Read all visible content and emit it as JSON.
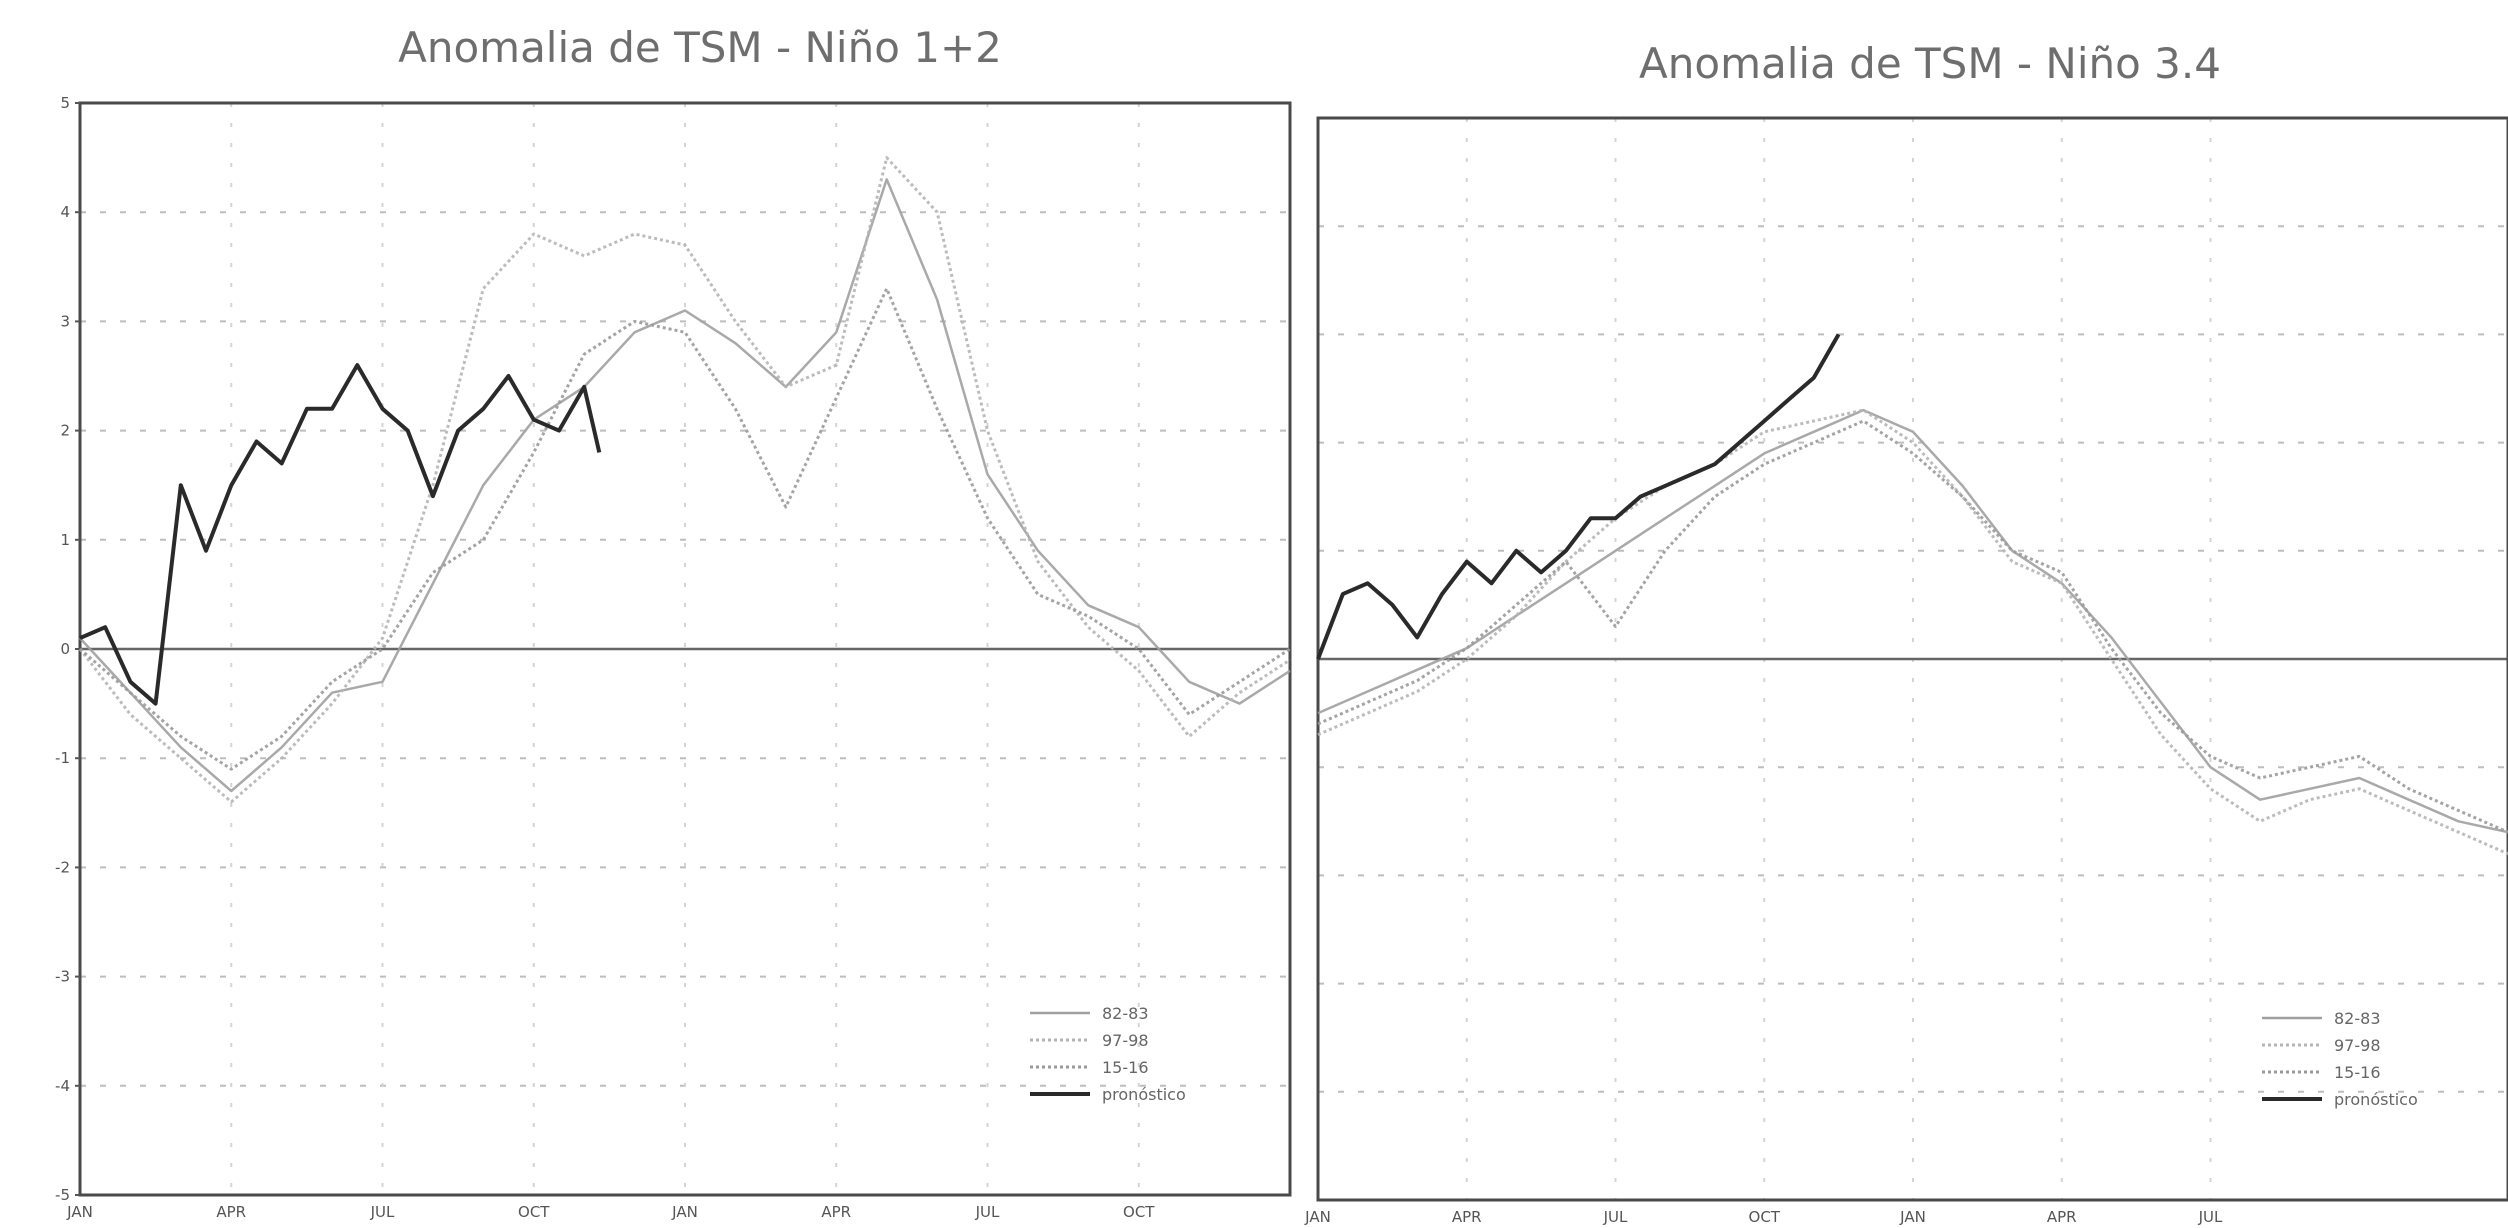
{
  "chart_data": [
    {
      "type": "line",
      "title": "Anomalia de TSM - Niño 1+2",
      "xlabel": "",
      "ylabel": "",
      "ylim": [
        -5,
        5
      ],
      "xlim": [
        0,
        24
      ],
      "x_tick_labels": [
        "JAN",
        "APR",
        "JUL",
        "OCT",
        "JAN",
        "APR",
        "JUL",
        "OCT"
      ],
      "x_tick_positions": [
        0,
        3,
        6,
        9,
        12,
        15,
        18,
        21
      ],
      "y_ticks": [
        -5,
        -4,
        -3,
        -2,
        -1,
        0,
        1,
        2,
        3,
        4,
        5
      ],
      "grid": true,
      "legend_position": "bottom-right",
      "series": [
        {
          "name": "82-83",
          "style": "solid-light",
          "color": "#a0a0a0",
          "x": [
            0,
            1,
            2,
            3,
            4,
            5,
            6,
            7,
            8,
            9,
            10,
            11,
            12,
            13,
            14,
            15,
            16,
            17,
            18,
            19,
            20,
            21,
            22,
            23,
            24
          ],
          "y": [
            0.1,
            -0.4,
            -0.9,
            -1.3,
            -0.9,
            -0.4,
            -0.3,
            0.6,
            1.5,
            2.1,
            2.4,
            2.9,
            3.1,
            2.8,
            2.4,
            2.9,
            4.3,
            3.2,
            1.6,
            0.9,
            0.4,
            0.2,
            -0.3,
            -0.5,
            -0.2
          ]
        },
        {
          "name": "97-98",
          "style": "dotted",
          "color": "#b5b5b5",
          "x": [
            0,
            1,
            2,
            3,
            4,
            5,
            6,
            7,
            8,
            9,
            10,
            11,
            12,
            13,
            14,
            15,
            16,
            17,
            18,
            19,
            20,
            21,
            22,
            23,
            24
          ],
          "y": [
            0.0,
            -0.6,
            -1.0,
            -1.4,
            -1.0,
            -0.5,
            0.1,
            1.5,
            3.3,
            3.8,
            3.6,
            3.8,
            3.7,
            3.0,
            2.4,
            2.6,
            4.5,
            4.0,
            2.0,
            0.8,
            0.2,
            -0.2,
            -0.8,
            -0.4,
            -0.1
          ]
        },
        {
          "name": "15-16",
          "style": "dotted",
          "color": "#9a9a9a",
          "x": [
            0,
            1,
            2,
            3,
            4,
            5,
            6,
            7,
            8,
            9,
            10,
            11,
            12,
            13,
            14,
            15,
            16,
            17,
            18,
            19,
            20,
            21,
            22,
            23,
            24
          ],
          "y": [
            0.0,
            -0.4,
            -0.8,
            -1.1,
            -0.8,
            -0.3,
            0.0,
            0.7,
            1.0,
            1.8,
            2.7,
            3.0,
            2.9,
            2.2,
            1.3,
            2.3,
            3.3,
            2.2,
            1.2,
            0.5,
            0.3,
            0.0,
            -0.6,
            -0.3,
            0.0
          ]
        },
        {
          "name": "pronóstico",
          "style": "solid-dark",
          "color": "#2a2a2a",
          "x": [
            0,
            0.5,
            1,
            1.5,
            2,
            2.5,
            3,
            3.5,
            4,
            4.5,
            5,
            5.5,
            6,
            6.5,
            7,
            7.5,
            8,
            8.5,
            9,
            9.5,
            10,
            10.3
          ],
          "y": [
            0.1,
            0.2,
            -0.3,
            -0.5,
            1.5,
            0.9,
            1.5,
            1.9,
            1.7,
            2.2,
            2.2,
            2.6,
            2.2,
            2.0,
            1.4,
            2.0,
            2.2,
            2.5,
            2.1,
            2.0,
            2.4,
            1.8
          ]
        }
      ],
      "legend": [
        "82-83",
        "97-98",
        "15-16",
        "pronóstico"
      ]
    },
    {
      "type": "line",
      "title": "Anomalia de TSM - Niño 3.4",
      "xlabel": "",
      "ylabel": "",
      "ylim": [
        -5,
        5
      ],
      "xlim": [
        0,
        24
      ],
      "x_tick_labels": [
        "JAN",
        "APR",
        "JUL",
        "OCT",
        "JAN",
        "APR",
        "JUL"
      ],
      "x_tick_positions": [
        0,
        3,
        6,
        9,
        12,
        15,
        18
      ],
      "grid": true,
      "legend_position": "bottom-right",
      "series": [
        {
          "name": "82-83",
          "style": "solid-light",
          "color": "#a0a0a0",
          "x": [
            0,
            1,
            2,
            3,
            4,
            5,
            6,
            7,
            8,
            9,
            10,
            11,
            12,
            13,
            14,
            15,
            16,
            17,
            18,
            19,
            20,
            21,
            22,
            23,
            24
          ],
          "y": [
            -0.5,
            -0.3,
            -0.1,
            0.1,
            0.4,
            0.7,
            1.0,
            1.3,
            1.6,
            1.9,
            2.1,
            2.3,
            2.1,
            1.6,
            1.0,
            0.7,
            0.2,
            -0.4,
            -1.0,
            -1.3,
            -1.2,
            -1.1,
            -1.3,
            -1.5,
            -1.6
          ]
        },
        {
          "name": "97-98",
          "style": "dotted",
          "color": "#b5b5b5",
          "x": [
            0,
            1,
            2,
            3,
            4,
            5,
            6,
            7,
            8,
            9,
            10,
            11,
            12,
            13,
            14,
            15,
            16,
            17,
            18,
            19,
            20,
            21,
            22,
            23,
            24
          ],
          "y": [
            -0.7,
            -0.5,
            -0.3,
            0.0,
            0.4,
            0.9,
            1.3,
            1.6,
            1.8,
            2.1,
            2.2,
            2.3,
            2.0,
            1.5,
            0.9,
            0.7,
            0.0,
            -0.7,
            -1.2,
            -1.5,
            -1.3,
            -1.2,
            -1.4,
            -1.6,
            -1.8
          ]
        },
        {
          "name": "15-16",
          "style": "dotted",
          "color": "#9a9a9a",
          "x": [
            0,
            1,
            2,
            3,
            4,
            5,
            6,
            7,
            8,
            9,
            10,
            11,
            12,
            13,
            14,
            15,
            16,
            17,
            18,
            19,
            20,
            21,
            22,
            23,
            24
          ],
          "y": [
            -0.6,
            -0.4,
            -0.2,
            0.1,
            0.5,
            0.9,
            0.3,
            1.0,
            1.5,
            1.8,
            2.0,
            2.2,
            1.9,
            1.5,
            1.0,
            0.8,
            0.1,
            -0.5,
            -0.9,
            -1.1,
            -1.0,
            -0.9,
            -1.2,
            -1.4,
            -1.6
          ]
        },
        {
          "name": "pronóstico",
          "style": "solid-dark",
          "color": "#2a2a2a",
          "x": [
            0,
            0.5,
            1,
            1.5,
            2,
            2.5,
            3,
            3.5,
            4,
            4.5,
            5,
            5.5,
            6,
            6.5,
            7,
            7.5,
            8,
            8.5,
            9,
            9.5,
            10,
            10.5
          ],
          "y": [
            0.0,
            0.6,
            0.7,
            0.5,
            0.2,
            0.6,
            0.9,
            0.7,
            1.0,
            0.8,
            1.0,
            1.3,
            1.3,
            1.5,
            1.6,
            1.7,
            1.8,
            2.0,
            2.2,
            2.4,
            2.6,
            3.0
          ]
        }
      ],
      "legend": [
        "82-83",
        "97-98",
        "15-16",
        "pronóstico"
      ]
    }
  ]
}
